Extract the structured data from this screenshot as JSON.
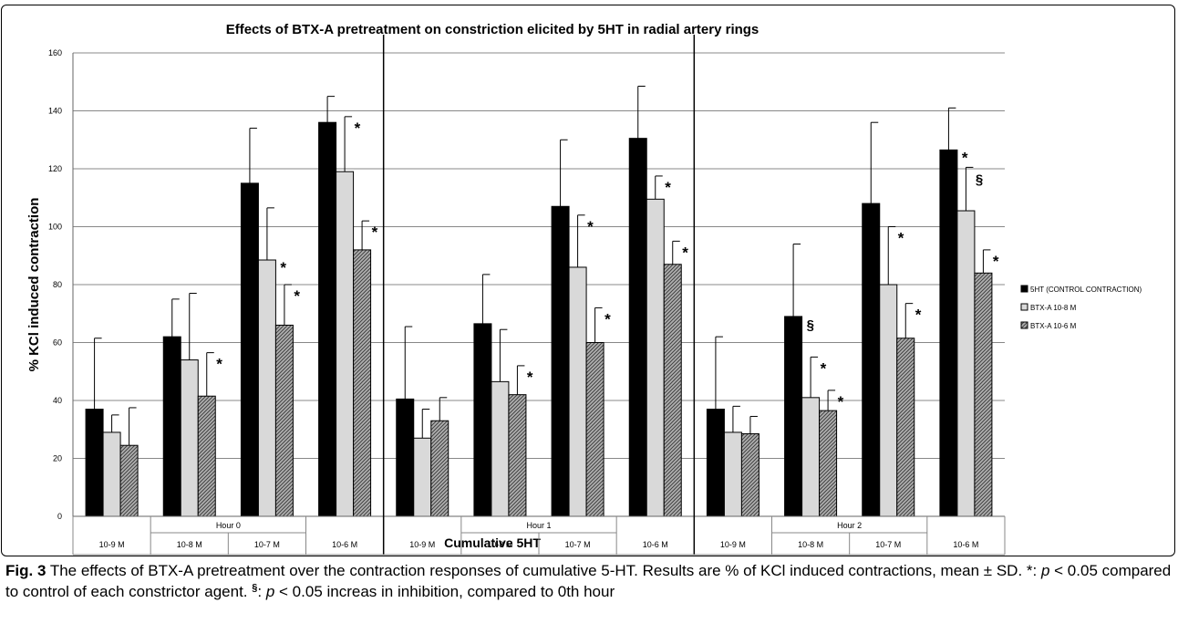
{
  "chart_data": {
    "type": "bar",
    "title": "Effects of BTX-A pretreatment on constriction elicited by 5HT in radial artery rings",
    "xlabel": "Cumulative 5HT",
    "ylabel": "% KCl induced contraction",
    "ylim": [
      0,
      160
    ],
    "yticks": [
      "0",
      "20",
      "40",
      "60",
      "80",
      "100",
      "120",
      "140",
      "160"
    ],
    "grid": true,
    "legend_position": "right",
    "groups": [
      "Hour 0",
      "Hour 1",
      "Hour 2"
    ],
    "concentrations": [
      "10-9 M",
      "10-8 M",
      "10-7 M",
      "10-6 M"
    ],
    "series": [
      {
        "name": "5HT (CONTROL CONTRACTION)",
        "color": "#000000",
        "values": [
          37,
          62,
          115,
          136,
          40.5,
          66.5,
          107,
          130.5,
          37,
          69,
          108,
          126.5
        ],
        "errors": [
          24.5,
          13,
          19,
          9,
          25,
          17,
          23,
          18,
          25,
          25,
          28,
          14.5
        ]
      },
      {
        "name": "BTX-A 10-8 M",
        "color": "#d9d9d9",
        "values": [
          29,
          54,
          88.5,
          119,
          27,
          46.5,
          86,
          109.5,
          29,
          41,
          80,
          105.5
        ],
        "errors": [
          6,
          23,
          18,
          19,
          10,
          18,
          18,
          8,
          9,
          14,
          20,
          15
        ]
      },
      {
        "name": "BTX-A 10-6 M",
        "color": "#8c8c8c",
        "values": [
          24.5,
          41.5,
          66,
          92,
          33,
          42,
          60,
          87,
          28.5,
          36.5,
          61.5,
          84
        ],
        "errors": [
          13,
          15,
          14,
          10,
          8,
          10,
          12,
          8,
          6,
          7,
          12,
          8
        ]
      }
    ],
    "annotations": [
      {
        "index": 3,
        "series": 1,
        "mark": "*"
      },
      {
        "index": 6,
        "series": 1,
        "mark": "*"
      },
      {
        "index": 7,
        "series": 1,
        "mark": "*"
      },
      {
        "index": 9,
        "series": 1,
        "mark": "*"
      },
      {
        "index": 10,
        "series": 1,
        "mark": "*"
      },
      {
        "index": 11,
        "series": 1,
        "mark": "§"
      },
      {
        "index": 2,
        "series": 1,
        "mark": "*",
        "position": "side"
      },
      {
        "index": 9,
        "series": 0,
        "mark": "§",
        "position": "side"
      },
      {
        "index": 11,
        "series": 0,
        "mark": "*",
        "position": "side"
      },
      {
        "index": 1,
        "series": 2,
        "mark": "*"
      },
      {
        "index": 2,
        "series": 2,
        "mark": "*"
      },
      {
        "index": 3,
        "series": 2,
        "mark": "*"
      },
      {
        "index": 5,
        "series": 2,
        "mark": "*"
      },
      {
        "index": 6,
        "series": 2,
        "mark": "*"
      },
      {
        "index": 7,
        "series": 2,
        "mark": "*"
      },
      {
        "index": 9,
        "series": 2,
        "mark": "*"
      },
      {
        "index": 10,
        "series": 2,
        "mark": "*"
      },
      {
        "index": 11,
        "series": 2,
        "mark": "*"
      }
    ]
  },
  "caption": {
    "label": "Fig. 3",
    "text": "The effects of BTX-A pretreatment over the contraction responses of cumulative 5-HT. Results are % of KCl induced contractions, mean ± SD. *: p < 0.05 compared to control of each constrictor agent. §: p < 0.05 increas in inhibition, compared to 0th hour"
  }
}
